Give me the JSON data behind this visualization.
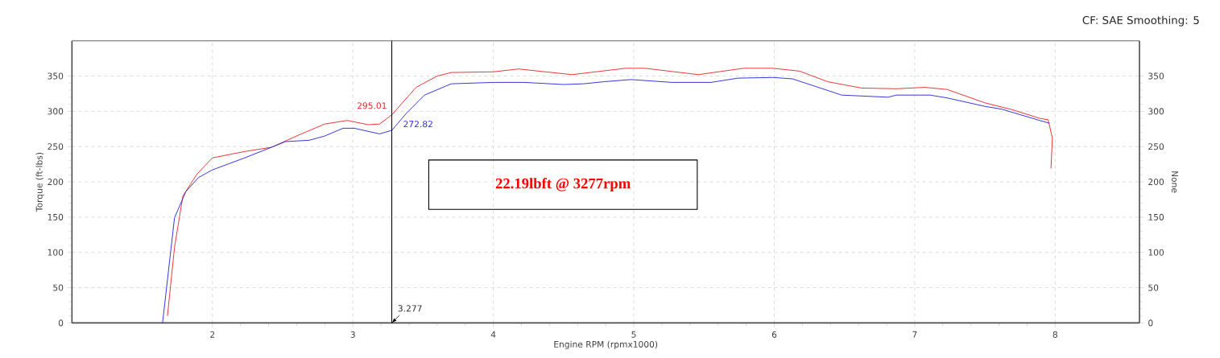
{
  "chart_data": {
    "type": "line",
    "xlabel": "Engine RPM (rpmx1000)",
    "ylabel": "Torque (ft-lbs)",
    "y2label": "None",
    "xlim": [
      1,
      8.6
    ],
    "xticks": [
      2,
      3,
      4,
      5,
      6,
      7,
      8
    ],
    "ylim": [
      0,
      400
    ],
    "yticks": [
      0,
      50,
      100,
      150,
      200,
      250,
      300,
      350
    ],
    "y2lim": [
      0,
      400
    ],
    "y2ticks": [
      0,
      50,
      100,
      150,
      200,
      250,
      300,
      350
    ],
    "grid": true,
    "series": [
      {
        "color": "#e8282c",
        "x": [
          1.68,
          1.73,
          1.79,
          1.89,
          2.0,
          2.23,
          2.42,
          2.61,
          2.8,
          2.96,
          3.01,
          3.11,
          3.19,
          3.277,
          3.45,
          3.6,
          3.7,
          4.0,
          4.18,
          4.56,
          4.94,
          5.08,
          5.46,
          5.78,
          5.99,
          6.18,
          6.38,
          6.62,
          6.87,
          7.07,
          7.23,
          7.5,
          7.7,
          7.89,
          7.95,
          7.98,
          7.97
        ],
        "values": [
          10,
          107,
          180,
          211,
          234,
          243,
          249,
          266,
          282,
          287,
          285,
          281,
          282,
          295,
          334,
          350,
          355,
          356,
          360,
          352,
          361,
          361,
          352,
          361,
          361,
          357,
          342,
          333,
          332,
          334,
          331,
          312,
          302,
          290,
          288,
          262,
          219
        ]
      },
      {
        "color": "#2828e0",
        "x": [
          1.645,
          1.73,
          1.81,
          1.9,
          2.0,
          2.23,
          2.42,
          2.52,
          2.69,
          2.8,
          2.93,
          3.01,
          3.19,
          3.277,
          3.38,
          3.51,
          3.7,
          4.0,
          4.22,
          4.5,
          4.64,
          4.79,
          4.98,
          5.27,
          5.55,
          5.74,
          5.99,
          6.13,
          6.48,
          6.81,
          6.87,
          7.11,
          7.23,
          7.5,
          7.62,
          7.89,
          7.96
        ],
        "values": [
          0,
          149,
          186,
          206,
          217,
          234,
          249,
          257,
          259,
          265,
          276,
          276,
          268,
          273,
          297,
          323,
          339,
          341,
          341,
          338,
          339,
          342,
          345,
          341,
          341,
          347,
          348,
          346,
          323,
          320,
          323,
          323,
          319,
          307,
          303,
          287,
          283
        ]
      }
    ],
    "ref_lines": [
      {
        "axis": "x",
        "value": 3.277,
        "label": "3.277",
        "color": "#000000"
      }
    ],
    "annotations": [
      "CF: SAE Smoothing: 5",
      "22.19lbft @ 3277rpm",
      {
        "text": "295.01",
        "x": 3.277,
        "y": 295.01
      },
      {
        "text": "272.82",
        "x": 3.277,
        "y": 272.82
      }
    ]
  }
}
